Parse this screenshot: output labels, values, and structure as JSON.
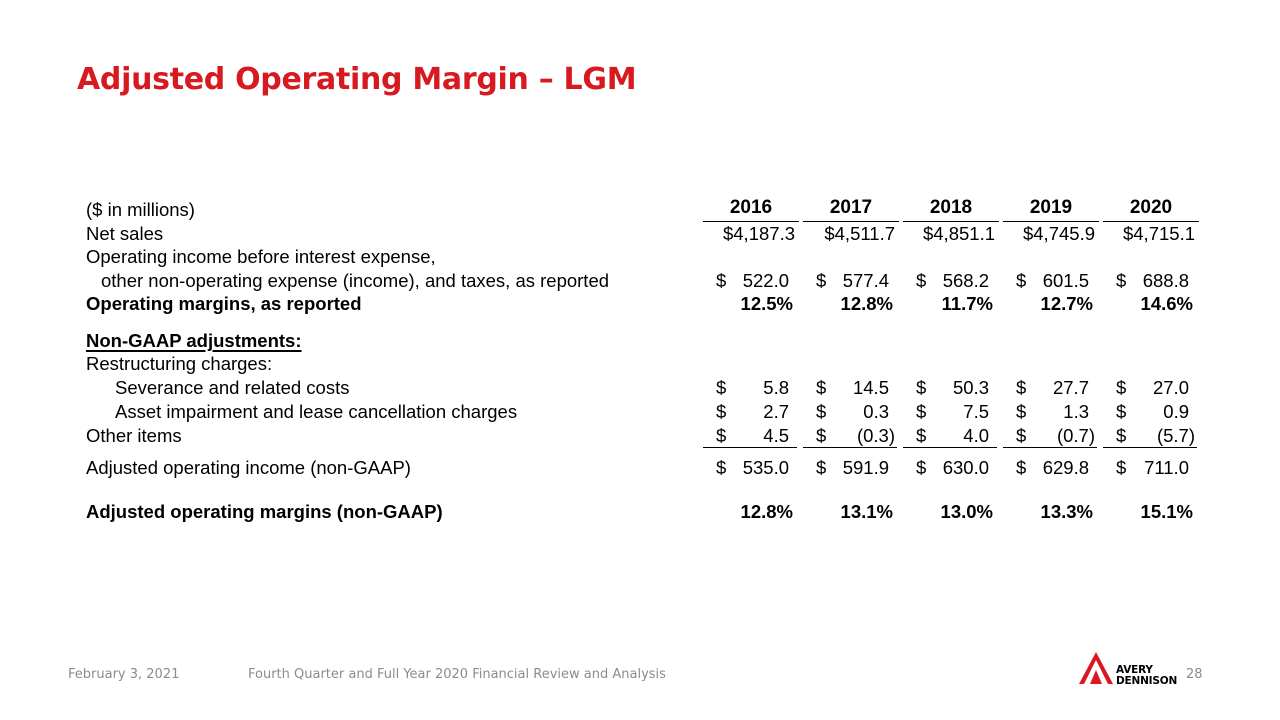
{
  "slide": {
    "title": "Adjusted Operating Margin – LGM"
  },
  "table": {
    "units_label": "($ in millions)",
    "years": [
      "2016",
      "2017",
      "2018",
      "2019",
      "2020"
    ],
    "rows": [
      {
        "label": "Net sales",
        "kind": "plain",
        "values": [
          "$4,187.3",
          "$4,511.7",
          "$4,851.1",
          "$4,745.9",
          "$4,715.1"
        ]
      },
      {
        "label": "Operating income before interest expense,",
        "kind": "none"
      },
      {
        "label": "other non-operating expense (income), and taxes, as reported",
        "kind": "dollar",
        "values": [
          "522.0",
          "577.4",
          "568.2",
          "601.5",
          "688.8"
        ]
      },
      {
        "label": "Operating margins, as reported",
        "kind": "percent",
        "bold": true,
        "values": [
          "12.5%",
          "12.8%",
          "11.7%",
          "12.7%",
          "14.6%"
        ]
      },
      {
        "label": "Non-GAAP adjustments:",
        "kind": "none",
        "bold": true
      },
      {
        "label": "Restructuring charges:",
        "kind": "none"
      },
      {
        "label": "Severance and related costs",
        "kind": "dollar",
        "values": [
          "5.8",
          "14.5",
          "50.3",
          "27.7",
          "27.0"
        ]
      },
      {
        "label": "Asset impairment and lease cancellation charges",
        "kind": "dollar",
        "values": [
          "2.7",
          "0.3",
          "7.5",
          "1.3",
          "0.9"
        ]
      },
      {
        "label": "Other items",
        "kind": "dollar",
        "values": [
          "4.5",
          "(0.3)",
          "4.0",
          "(0.7)",
          "(5.7)"
        ]
      },
      {
        "label": "Adjusted operating income (non-GAAP)",
        "kind": "dollar",
        "values": [
          "535.0",
          "591.9",
          "630.0",
          "629.8",
          "711.0"
        ]
      },
      {
        "label": "Adjusted operating margins (non-GAAP)",
        "kind": "percent",
        "bold": true,
        "values": [
          "12.8%",
          "13.1%",
          "13.0%",
          "13.3%",
          "15.1%"
        ]
      }
    ],
    "currency_symbol": "$"
  },
  "footer": {
    "date": "February 3, 2021",
    "presentation": "Fourth Quarter and Full Year 2020 Financial Review and Analysis",
    "page_number": "28",
    "logo_line1": "AVERY",
    "logo_line2": "DENNISON",
    "logo_color": "#d71920"
  }
}
